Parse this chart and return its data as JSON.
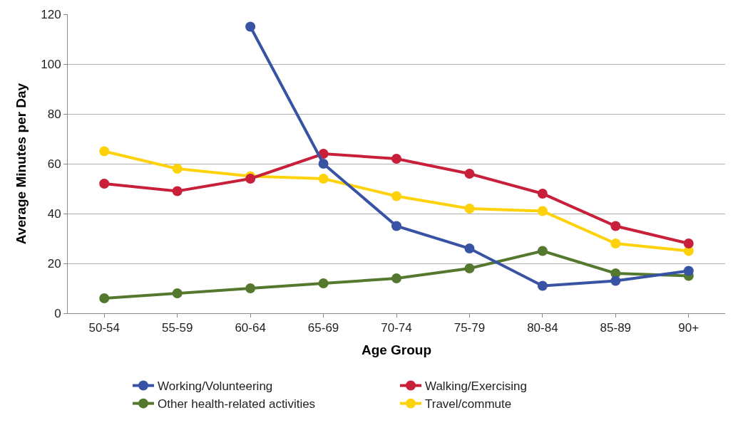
{
  "chart_data": {
    "type": "line",
    "xlabel": "Age Group",
    "ylabel": "Average Minutes per Day",
    "categories": [
      "50-54",
      "55-59",
      "60-64",
      "65-69",
      "70-74",
      "75-79",
      "80-84",
      "85-89",
      "90+"
    ],
    "series": [
      {
        "name": "Working/Volunteering",
        "color": "#3953a4",
        "values": [
          null,
          null,
          115,
          60,
          35,
          26,
          11,
          13,
          17
        ]
      },
      {
        "name": "Walking/Exercising",
        "color": "#c8203a",
        "values": [
          52,
          49,
          54,
          64,
          62,
          56,
          48,
          35,
          28
        ]
      },
      {
        "name": "Other health-related activities",
        "color": "#55782f",
        "values": [
          6,
          8,
          10,
          12,
          14,
          18,
          25,
          16,
          15
        ]
      },
      {
        "name": "Travel/commute",
        "color": "#fdd20a",
        "values": [
          65,
          58,
          55,
          54,
          47,
          42,
          41,
          28,
          25
        ]
      }
    ],
    "ylim": [
      0,
      120
    ],
    "yticks": [
      0,
      20,
      40,
      60,
      80,
      100,
      120
    ],
    "grid": "y",
    "legend": "bottom",
    "marker": "circle",
    "line_style": "solid"
  }
}
